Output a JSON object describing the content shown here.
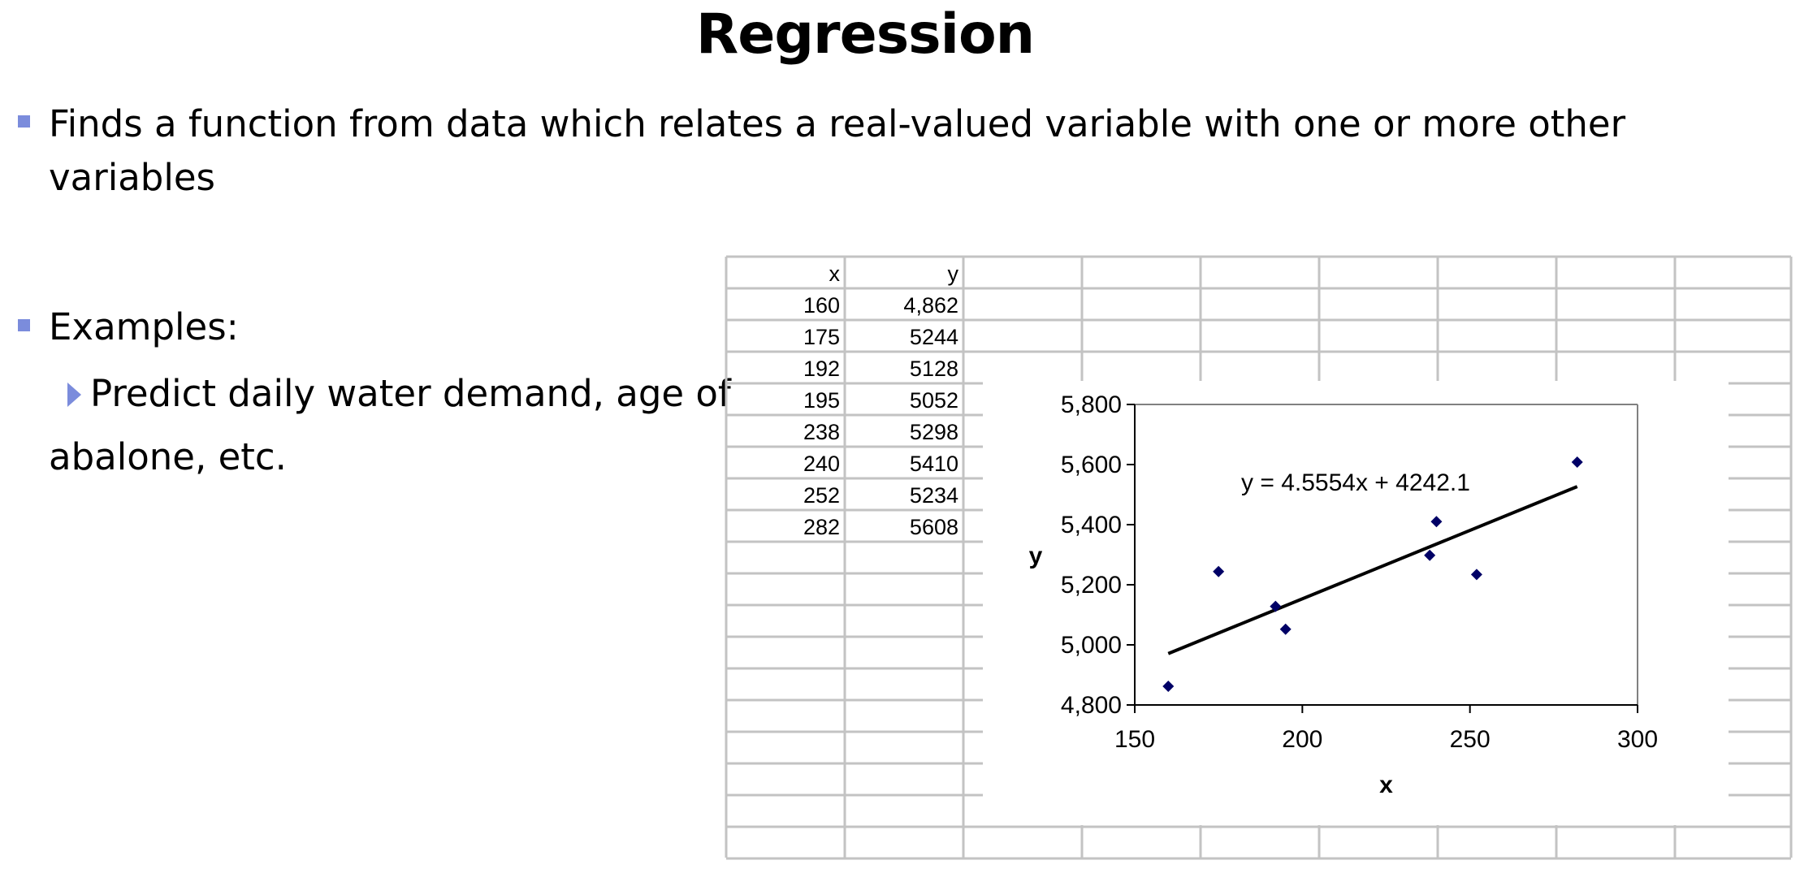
{
  "slide": {
    "title": "Regression",
    "bullet1_line1": "Finds a function from data which relates a real-valued variable with one or more other",
    "bullet1_line2": "variables",
    "bullet2": "Examples:",
    "sub_bullet_line1": "Predict daily water demand, age of",
    "sub_bullet_line2": "abalone, etc."
  },
  "table": {
    "headers": [
      "x",
      "y"
    ],
    "rows": [
      [
        "160",
        "4,862"
      ],
      [
        "175",
        "5244"
      ],
      [
        "192",
        "5128"
      ],
      [
        "195",
        "5052"
      ],
      [
        "238",
        "5298"
      ],
      [
        "240",
        "5410"
      ],
      [
        "252",
        "5234"
      ],
      [
        "282",
        "5608"
      ]
    ]
  },
  "chart_data": {
    "type": "scatter",
    "x": [
      160,
      175,
      192,
      195,
      238,
      240,
      252,
      282
    ],
    "y": [
      4862,
      5244,
      5128,
      5052,
      5298,
      5410,
      5234,
      5608
    ],
    "xlabel": "x",
    "ylabel": "y",
    "xlim": [
      150,
      300
    ],
    "ylim": [
      4800,
      5800
    ],
    "x_ticks": [
      150,
      200,
      250,
      300
    ],
    "y_ticks": [
      4800,
      5000,
      5200,
      5400,
      5600,
      5800
    ],
    "x_tick_labels": [
      "150",
      "200",
      "250",
      "300"
    ],
    "y_tick_labels": [
      "4,800",
      "5,000",
      "5,200",
      "5,400",
      "5,600",
      "5,800"
    ],
    "trendline": {
      "slope": 4.5554,
      "intercept": 4242.1,
      "x_range": [
        160,
        282
      ]
    },
    "trendline_label": "y = 4.5554x + 4242.1",
    "grid": false,
    "legend": "none",
    "marker_color": "#000066"
  }
}
